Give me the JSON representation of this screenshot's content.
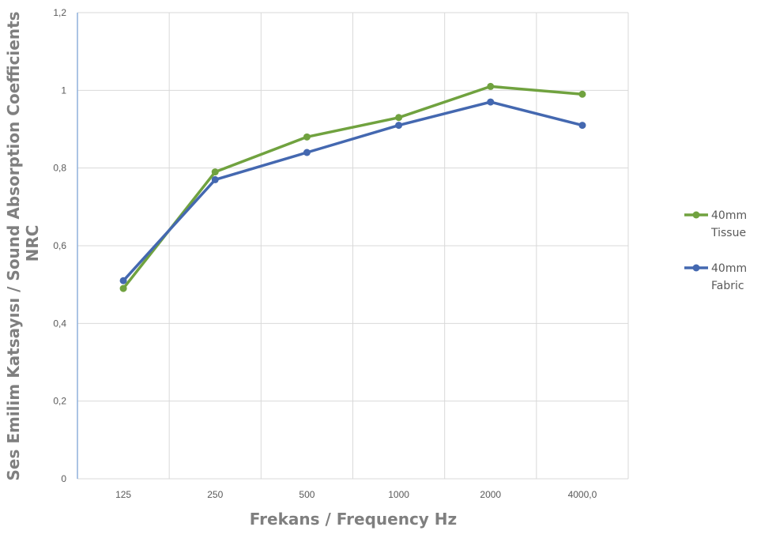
{
  "chart_data": {
    "type": "line",
    "categories": [
      "125",
      "250",
      "500",
      "1000",
      "2000",
      "4000,0"
    ],
    "series": [
      {
        "name": "40mm Tissue",
        "name_lines": [
          "40mm",
          "Tissue"
        ],
        "color": "#70a23f",
        "values": [
          0.49,
          0.79,
          0.88,
          0.93,
          1.01,
          0.99
        ]
      },
      {
        "name": "40mm Fabric",
        "name_lines": [
          "40mm",
          "Fabric"
        ],
        "color": "#4468b0",
        "values": [
          0.51,
          0.77,
          0.84,
          0.91,
          0.97,
          0.91
        ]
      }
    ],
    "xlabel": "Frekans / Frequency Hz",
    "ylabel_lines": [
      "Ses Emilim Katsayısı / Sound Absorption Coefficients",
      "NRC"
    ],
    "ylim": [
      0,
      1.2
    ],
    "yticks": [
      0,
      0.2,
      0.4,
      0.6,
      0.8,
      1,
      1.2
    ],
    "ytick_labels": [
      "0",
      "0,2",
      "0,4",
      "0,6",
      "0,8",
      "1",
      "1,2"
    ],
    "grid": true,
    "legend_position": "right",
    "colors": {
      "grid": "#d9d9d9",
      "axis": "#8fb0dc",
      "tick_text": "#595959",
      "title_text": "#7f7f7f"
    }
  }
}
